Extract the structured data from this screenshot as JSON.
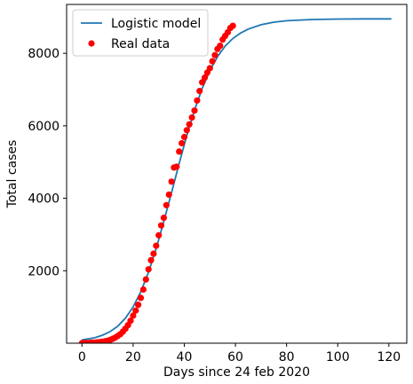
{
  "chart_data": {
    "type": "scatter",
    "title": "",
    "xlabel": "Days since 24 feb 2020",
    "ylabel": "Total cases",
    "xlim": [
      -6,
      127
    ],
    "ylim": [
      0,
      9350
    ],
    "x_ticks": [
      0,
      20,
      40,
      60,
      80,
      100,
      120
    ],
    "y_ticks": [
      2000,
      4000,
      6000,
      8000
    ],
    "grid": false,
    "legend_placement": "top-left",
    "series": [
      {
        "name": "Logistic model",
        "kind": "line",
        "color": "#1f77b4",
        "x": [
          0,
          5,
          8,
          11,
          14,
          17,
          20,
          23,
          26,
          29,
          32,
          35,
          38,
          41,
          44,
          47,
          50,
          53,
          56,
          59,
          62,
          65,
          70,
          75,
          80,
          90,
          100,
          110,
          121
        ],
        "y": [
          90,
          150,
          220,
          320,
          470,
          690,
          1000,
          1420,
          1960,
          2610,
          3360,
          4150,
          4960,
          5730,
          6430,
          7030,
          7520,
          7910,
          8200,
          8410,
          8560,
          8670,
          8790,
          8860,
          8900,
          8935,
          8945,
          8950,
          8950
        ]
      },
      {
        "name": "Real data",
        "kind": "points",
        "color": "#ff0000",
        "x": [
          0,
          1,
          2,
          3,
          4,
          5,
          6,
          7,
          8,
          9,
          10,
          11,
          12,
          13,
          14,
          15,
          16,
          17,
          18,
          19,
          20,
          21,
          22,
          23,
          24,
          25,
          26,
          27,
          28,
          29,
          30,
          31,
          32,
          33,
          34,
          35,
          36,
          37,
          38,
          39,
          40,
          41,
          42,
          43,
          44,
          45,
          46,
          47,
          48,
          49,
          50,
          51,
          52,
          53,
          54,
          55,
          56,
          57,
          58,
          59
        ],
        "y": [
          3,
          5,
          7,
          10,
          14,
          18,
          24,
          32,
          40,
          52,
          68,
          90,
          120,
          155,
          200,
          250,
          320,
          400,
          500,
          620,
          760,
          900,
          1060,
          1250,
          1480,
          1760,
          2040,
          2290,
          2470,
          2690,
          2980,
          3250,
          3460,
          3810,
          4100,
          4460,
          4850,
          4870,
          5290,
          5520,
          5690,
          5880,
          6040,
          6230,
          6420,
          6700,
          6960,
          7200,
          7330,
          7470,
          7590,
          7780,
          7950,
          8120,
          8210,
          8380,
          8480,
          8580,
          8700,
          8760
        ]
      }
    ]
  }
}
